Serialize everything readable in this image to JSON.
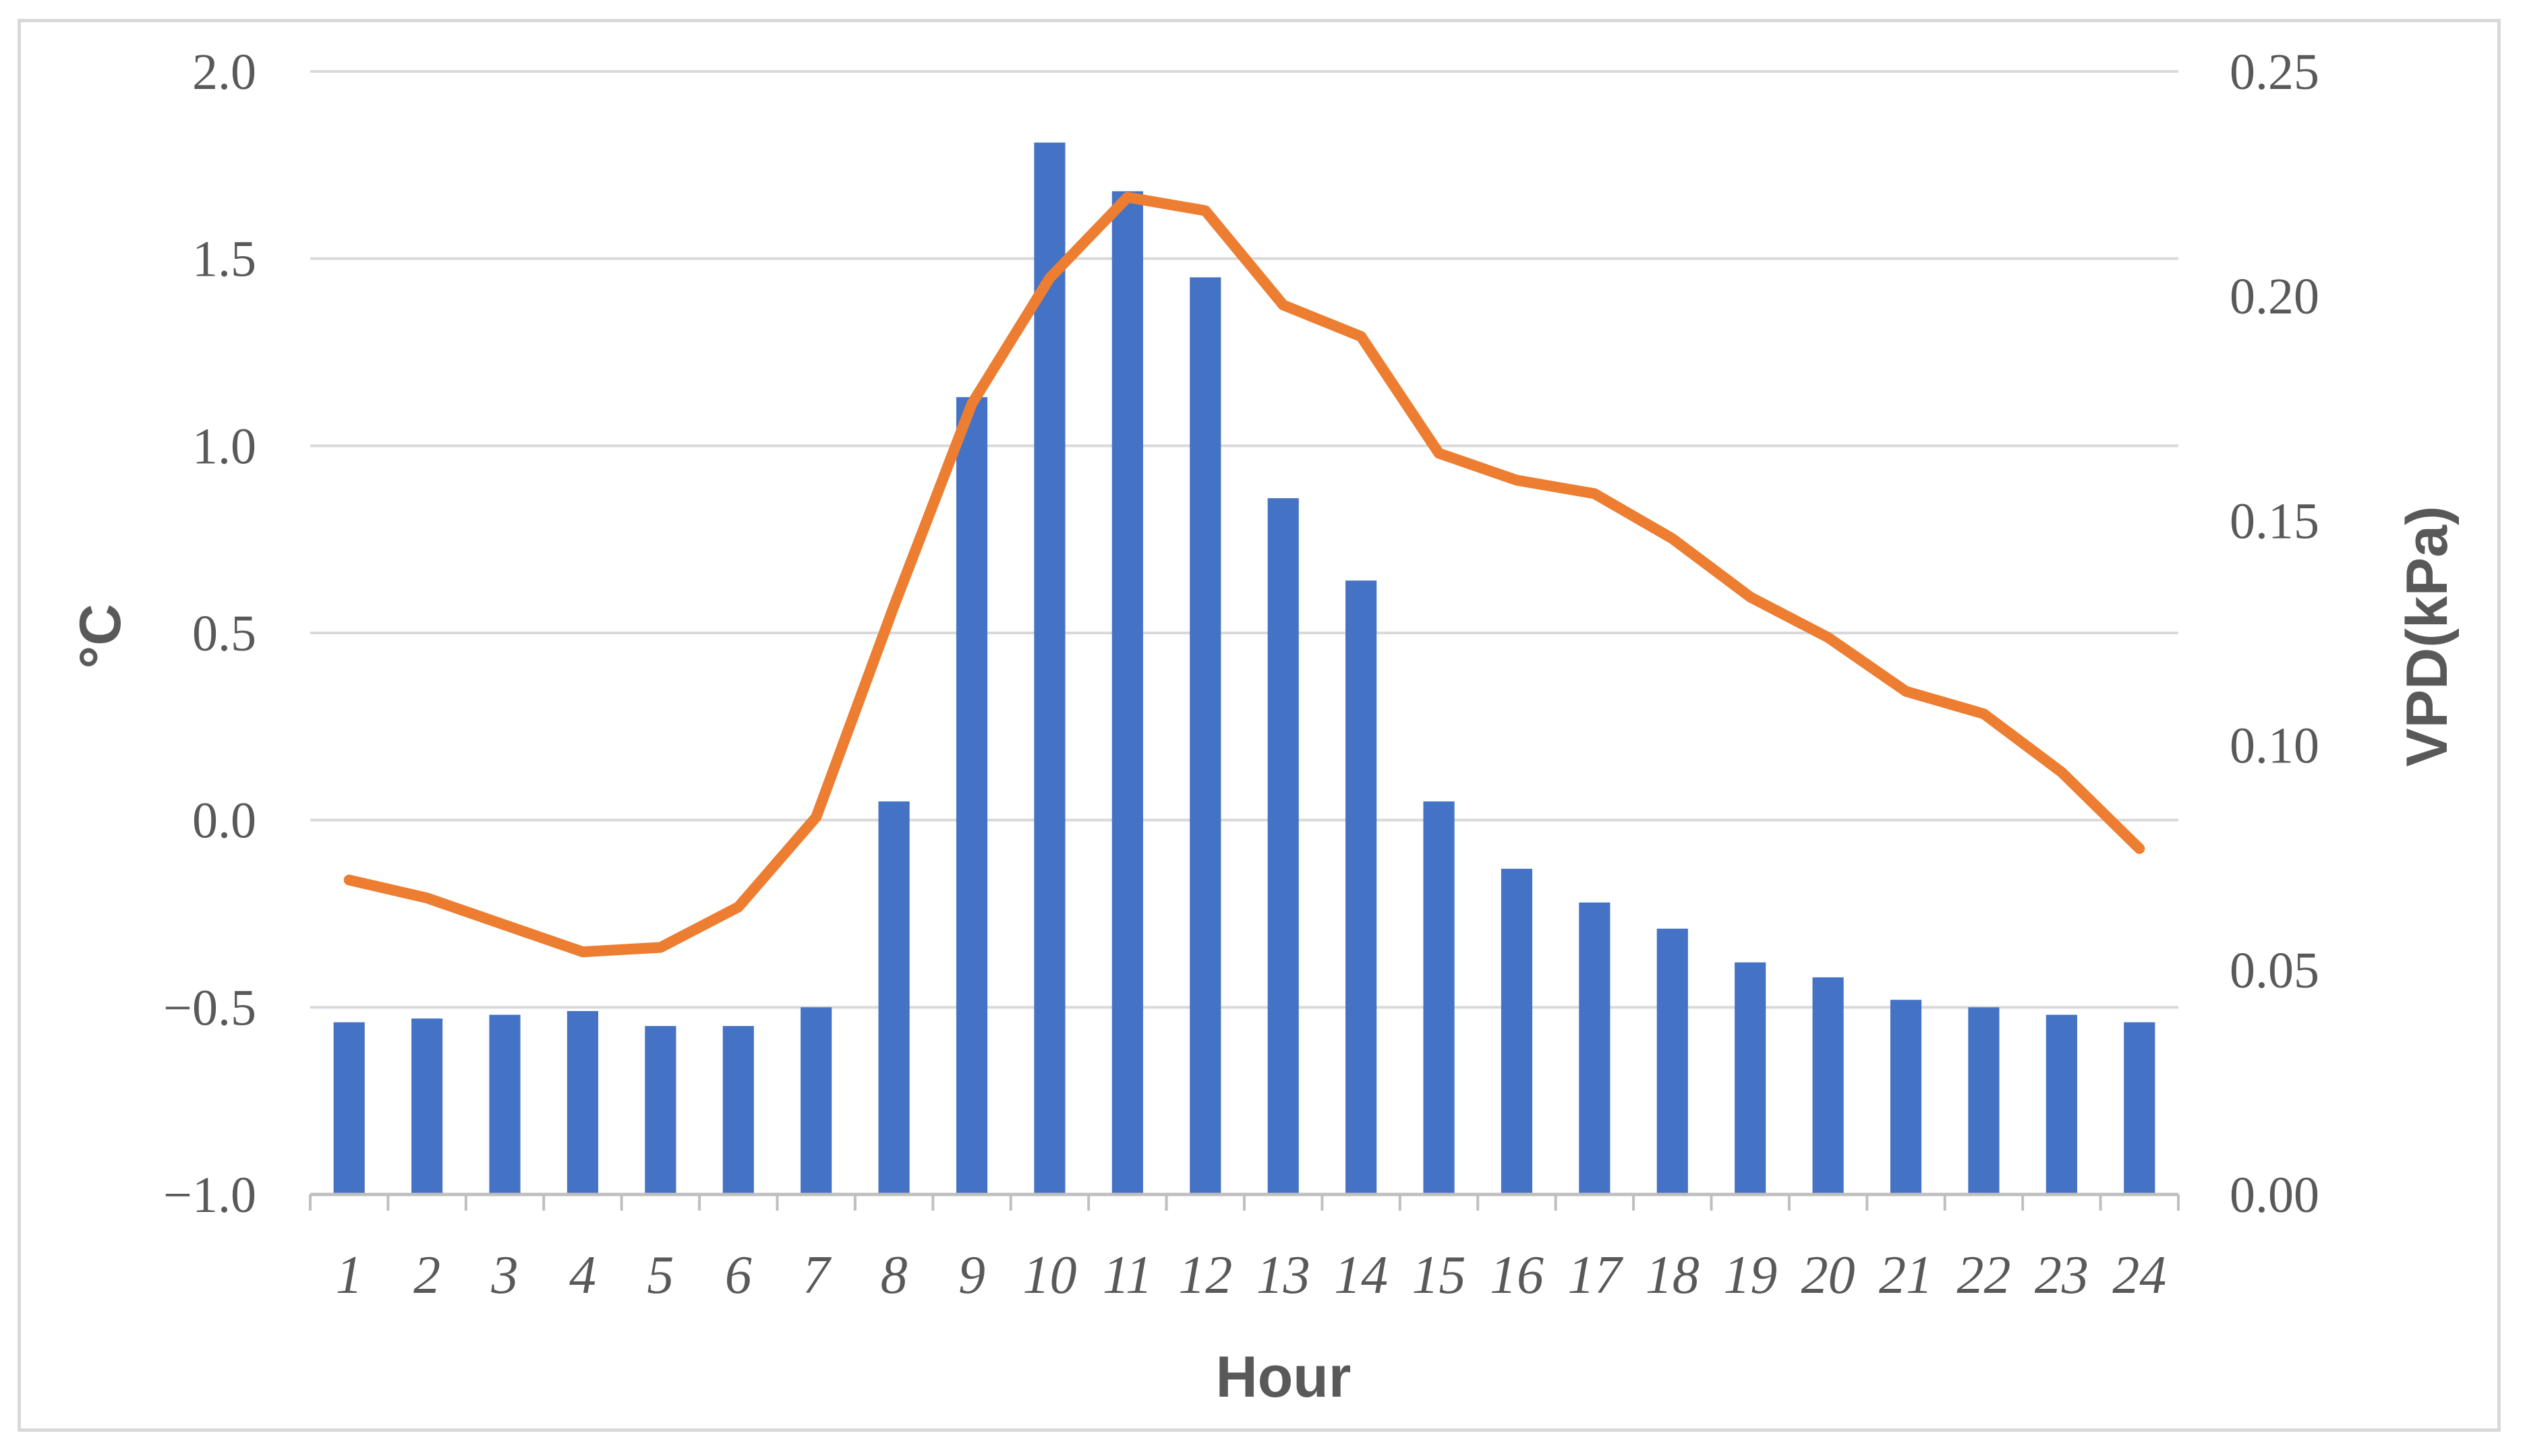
{
  "chart_data": {
    "type": "bar",
    "categories": [
      "1",
      "2",
      "3",
      "4",
      "5",
      "6",
      "7",
      "8",
      "9",
      "10",
      "11",
      "12",
      "13",
      "14",
      "15",
      "16",
      "17",
      "18",
      "19",
      "20",
      "21",
      "22",
      "23",
      "24"
    ],
    "series": [
      {
        "type": "bar",
        "axis": "left",
        "color": "#4472C4",
        "values": [
          -0.54,
          -0.53,
          -0.52,
          -0.51,
          -0.55,
          -0.55,
          -0.5,
          0.05,
          1.13,
          1.81,
          1.68,
          1.45,
          0.86,
          0.64,
          0.05,
          -0.13,
          -0.22,
          -0.29,
          -0.38,
          -0.42,
          -0.48,
          -0.5,
          -0.52,
          -0.54
        ]
      },
      {
        "type": "line",
        "axis": "right",
        "color": "#ED7D31",
        "values": [
          0.07,
          0.066,
          0.06,
          0.054,
          0.055,
          0.064,
          0.084,
          0.131,
          0.176,
          0.204,
          0.222,
          0.219,
          0.198,
          0.191,
          0.165,
          0.159,
          0.156,
          0.146,
          0.133,
          0.124,
          0.112,
          0.107,
          0.094,
          0.077
        ]
      }
    ],
    "xlabel": "Hour",
    "ylabel": "°C",
    "y2label": "VPD(kPa)",
    "ylim": [
      -1.0,
      2.0
    ],
    "y2lim": [
      0.0,
      0.25
    ],
    "yticks": [
      "2.0",
      "1.5",
      "1.0",
      "0.5",
      "0.0",
      "−0.5",
      "−1.0"
    ],
    "yticks_values": [
      2.0,
      1.5,
      1.0,
      0.5,
      0.0,
      -0.5,
      -1.0
    ],
    "y2ticks": [
      "0.25",
      "0.20",
      "0.15",
      "0.10",
      "0.05",
      "0.00"
    ],
    "y2ticks_values": [
      0.25,
      0.2,
      0.15,
      0.1,
      0.05,
      0.0
    ],
    "grid": true,
    "gridline_color": "#d9d9d9",
    "axis_color": "#bfbfbf"
  }
}
